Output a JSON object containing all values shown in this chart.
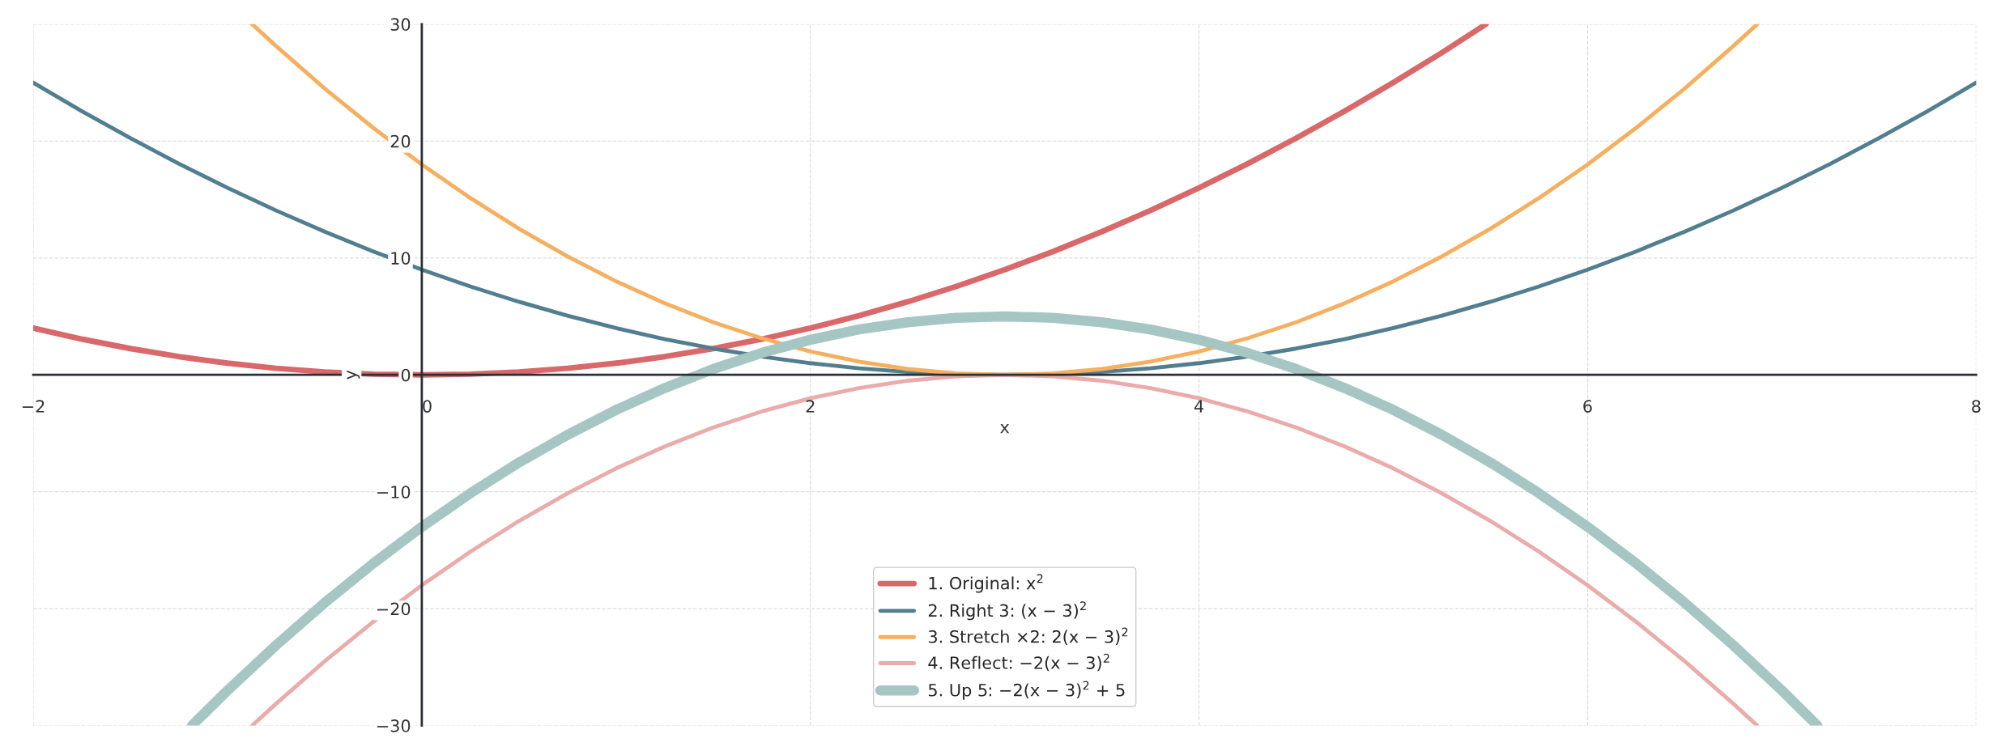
{
  "chart_data": {
    "type": "line",
    "xlabel": "x",
    "ylabel": "y",
    "xlim": [
      -2,
      8
    ],
    "ylim": [
      -30,
      30
    ],
    "xticks": [
      {
        "value": -2,
        "label": "−2"
      },
      0,
      2,
      4,
      6,
      8
    ],
    "yticks": [
      {
        "value": -30,
        "label": "−30"
      },
      {
        "value": -20,
        "label": "−20"
      },
      {
        "value": -10,
        "label": "−10"
      },
      0,
      10,
      20,
      30
    ],
    "grid": true,
    "legend": "bottom",
    "marker": "none",
    "line_style": "solid",
    "series": [
      {
        "name": "1. Original: x$^{2}$",
        "color": "#d9686a",
        "x": [
          -2,
          -1.75,
          -1.5,
          -1.25,
          -1,
          -0.75,
          -0.5,
          -0.25,
          0,
          0.25,
          0.5,
          0.75,
          1,
          1.25,
          1.5,
          1.75,
          2,
          2.25,
          2.5,
          2.75,
          3,
          3.25,
          3.5,
          3.75,
          4,
          4.25,
          4.5,
          4.75,
          5,
          5.25,
          5.477
        ],
        "values": [
          4,
          3.06,
          2.25,
          1.56,
          1,
          0.56,
          0.25,
          0.06,
          0,
          0.06,
          0.25,
          0.56,
          1,
          1.56,
          2.25,
          3.06,
          4,
          5.06,
          6.25,
          7.56,
          9,
          10.56,
          12.25,
          14.06,
          16,
          18.06,
          20.25,
          22.56,
          25,
          27.56,
          30
        ]
      },
      {
        "name": "2. Right 3: (x − 3)$^{2}$",
        "color": "#527f8f",
        "x": [
          -2,
          -1.75,
          -1.5,
          -1.25,
          -1,
          -0.75,
          -0.5,
          -0.25,
          0,
          0.25,
          0.5,
          0.75,
          1,
          1.25,
          1.5,
          1.75,
          2,
          2.25,
          2.5,
          2.75,
          3,
          3.25,
          3.5,
          3.75,
          4,
          4.25,
          4.5,
          4.75,
          5,
          5.25,
          5.5,
          5.75,
          6,
          6.25,
          6.5,
          6.75,
          7,
          7.25,
          7.5,
          7.75,
          8
        ],
        "values": [
          25,
          22.56,
          20.25,
          18.06,
          16,
          14.06,
          12.25,
          10.56,
          9,
          7.56,
          6.25,
          5.06,
          4,
          3.06,
          2.25,
          1.56,
          1,
          0.56,
          0.25,
          0.06,
          0,
          0.06,
          0.25,
          0.56,
          1,
          1.56,
          2.25,
          3.06,
          4,
          5.06,
          6.25,
          7.56,
          9,
          10.56,
          12.25,
          14.06,
          16,
          18.06,
          20.25,
          22.56,
          25
        ]
      },
      {
        "name": "3. Stretch ×2: 2(x − 3)$^{2}$",
        "color": "#f4b060",
        "x": [
          -0.873,
          -0.75,
          -0.5,
          -0.25,
          0,
          0.25,
          0.5,
          0.75,
          1,
          1.25,
          1.5,
          1.75,
          2,
          2.25,
          2.5,
          2.75,
          3,
          3.25,
          3.5,
          3.75,
          4,
          4.25,
          4.5,
          4.75,
          5,
          5.25,
          5.5,
          5.75,
          6,
          6.25,
          6.5,
          6.75,
          6.873
        ],
        "values": [
          30,
          28.13,
          24.5,
          21.13,
          18,
          15.13,
          12.5,
          10.13,
          8,
          6.13,
          4.5,
          3.13,
          2,
          1.13,
          0.5,
          0.13,
          0,
          0.13,
          0.5,
          1.13,
          2,
          3.13,
          4.5,
          6.13,
          8,
          10.13,
          12.5,
          15.13,
          18,
          21.13,
          24.5,
          28.13,
          30
        ]
      },
      {
        "name": "4. Reflect: −2(x − 3)$^{2}$",
        "color": "#eaabab",
        "x": [
          -0.873,
          -0.75,
          -0.5,
          -0.25,
          0,
          0.25,
          0.5,
          0.75,
          1,
          1.25,
          1.5,
          1.75,
          2,
          2.25,
          2.5,
          2.75,
          3,
          3.25,
          3.5,
          3.75,
          4,
          4.25,
          4.5,
          4.75,
          5,
          5.25,
          5.5,
          5.75,
          6,
          6.25,
          6.5,
          6.75,
          6.873
        ],
        "values": [
          -30,
          -28.13,
          -24.5,
          -21.13,
          -18,
          -15.13,
          -12.5,
          -10.13,
          -8,
          -6.13,
          -4.5,
          -3.13,
          -2,
          -1.13,
          -0.5,
          -0.13,
          0,
          -0.13,
          -0.5,
          -1.13,
          -2,
          -3.13,
          -4.5,
          -6.13,
          -8,
          -10.13,
          -12.5,
          -15.13,
          -18,
          -21.13,
          -24.5,
          -28.13,
          -30
        ]
      },
      {
        "name": "5. Up 5: −2(x − 3)$^{2}$ + 5",
        "color": "#a6c6c4",
        "x": [
          -1.183,
          -1,
          -0.75,
          -0.5,
          -0.25,
          0,
          0.25,
          0.5,
          0.75,
          1,
          1.25,
          1.5,
          1.75,
          2,
          2.25,
          2.5,
          2.75,
          3,
          3.25,
          3.5,
          3.75,
          4,
          4.25,
          4.5,
          4.75,
          5,
          5.25,
          5.5,
          5.75,
          6,
          6.25,
          6.5,
          6.75,
          7,
          7.183
        ],
        "values": [
          -30,
          -27,
          -23.13,
          -19.5,
          -16.13,
          -13,
          -10.13,
          -7.5,
          -5.13,
          -3,
          -1.13,
          0.5,
          1.88,
          3,
          3.88,
          4.5,
          4.88,
          5,
          4.88,
          4.5,
          3.88,
          3,
          1.88,
          0.5,
          -1.13,
          -3,
          -5.13,
          -7.5,
          -10.13,
          -13,
          -16.13,
          -19.5,
          -23.13,
          -27,
          -30
        ]
      }
    ]
  }
}
